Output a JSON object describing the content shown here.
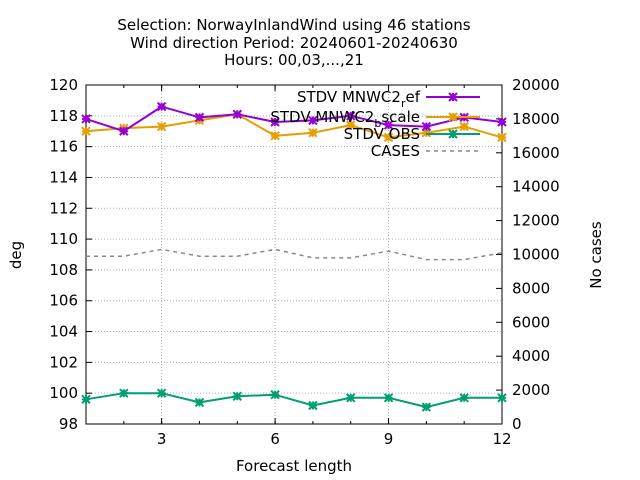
{
  "chart_data": {
    "type": "line",
    "title_lines": [
      "Selection: NorwayInlandWind using    46 stations",
      "Wind direction   Period: 20240601-20240630",
      "Hours: 00,03,...,21"
    ],
    "xlabel": "Forecast length",
    "ylabel": "deg",
    "y2label": "No cases",
    "xlim": [
      1,
      12
    ],
    "ylim": [
      98,
      120
    ],
    "y2lim": [
      0,
      20000
    ],
    "xticks": [
      "3",
      "6",
      "9",
      "12"
    ],
    "yticks": [
      "98",
      "100",
      "102",
      "104",
      "106",
      "108",
      "110",
      "112",
      "114",
      "116",
      "118",
      "120"
    ],
    "y2ticks": [
      "0",
      "2000",
      "4000",
      "6000",
      "8000",
      "10000",
      "12000",
      "14000",
      "16000",
      "18000",
      "20000"
    ],
    "grid": true,
    "legend_position": "top-right",
    "x": [
      1,
      2,
      3,
      4,
      5,
      6,
      7,
      8,
      9,
      10,
      11,
      12
    ],
    "series": [
      {
        "name": "STDV MNWC2_ref",
        "axis": "y",
        "color": "#9400d3",
        "marker": "x",
        "values": [
          117.8,
          117.0,
          118.6,
          117.9,
          118.1,
          117.6,
          117.7,
          118.0,
          117.4,
          117.3,
          117.9,
          117.6
        ]
      },
      {
        "name": "STDV MNWC2_bscale",
        "axis": "y",
        "color": "#e69f00",
        "marker": "x",
        "values": [
          117.0,
          117.2,
          117.3,
          117.7,
          118.1,
          116.7,
          116.9,
          117.4,
          116.6,
          116.9,
          117.3,
          116.6
        ]
      },
      {
        "name": "STDV OBS",
        "axis": "y",
        "color": "#009e73",
        "marker": "x",
        "values": [
          99.6,
          100.0,
          100.0,
          99.4,
          99.8,
          99.9,
          99.2,
          99.7,
          99.7,
          99.1,
          99.7,
          99.7
        ]
      },
      {
        "name": "CASES",
        "axis": "y2",
        "color": "#888888",
        "dashed": true,
        "values": [
          9900,
          9900,
          10300,
          9900,
          9900,
          10300,
          9800,
          9800,
          10200,
          9700,
          9700,
          10100
        ]
      }
    ],
    "legend": {
      "entries": [
        {
          "text": "STDV MNWC2",
          "sub": "r",
          "rest": "ef"
        },
        {
          "text": "STDV MNWC2",
          "sub": "b",
          "rest": "scale"
        },
        {
          "text": "STDV OBS",
          "sub": "",
          "rest": ""
        },
        {
          "text": "CASES",
          "sub": "",
          "rest": ""
        }
      ]
    }
  }
}
